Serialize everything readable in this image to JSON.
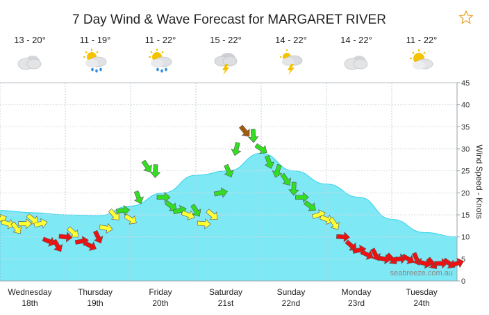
{
  "title": "7 Day Wind & Wave Forecast for MARGARET RIVER",
  "favourite_icon": "star-icon",
  "watermark": "seabreeze.com.au",
  "days": [
    {
      "temp": "13 - 20°",
      "icon": "cloud-icon",
      "day": "Wednesday",
      "date": "18th"
    },
    {
      "temp": "11 - 19°",
      "icon": "sun-cloud-rain-icon",
      "day": "Thursday",
      "date": "19th"
    },
    {
      "temp": "11 - 22°",
      "icon": "sun-cloud-rain-icon",
      "day": "Friday",
      "date": "20th"
    },
    {
      "temp": "15 - 22°",
      "icon": "storm-cloud-icon",
      "day": "Saturday",
      "date": "21st"
    },
    {
      "temp": "14 - 22°",
      "icon": "sun-storm-cloud-icon",
      "day": "Sunday",
      "date": "22nd"
    },
    {
      "temp": "14 - 22°",
      "icon": "cloud-icon",
      "day": "Monday",
      "date": "23rd"
    },
    {
      "temp": "11 - 22°",
      "icon": "sun-cloud-icon",
      "day": "Tuesday",
      "date": "24th"
    }
  ],
  "colors": {
    "wave": "#7fe8f5",
    "wave_edge": "#33d3ea",
    "light": "#ffff33",
    "moderate": "#33dd22",
    "strong": "#ee1111",
    "gale": "#a35c0a"
  },
  "chart_data": {
    "type": "area",
    "ylabel": "Wind Speed - Knots",
    "yaxis_position": "right",
    "ylim": [
      0,
      45
    ],
    "yticks": [
      0,
      5,
      10,
      15,
      20,
      25,
      30,
      35,
      40,
      45
    ],
    "xlim": [
      0,
      7
    ],
    "x_units": "days from Wednesday 18th 00:00",
    "grid": true,
    "wave_height_series": {
      "x": [
        0,
        0.5,
        1,
        1.5,
        2,
        2.5,
        3,
        3.5,
        4,
        4.5,
        5,
        5.5,
        6,
        6.5,
        7
      ],
      "values": [
        16,
        15.5,
        15,
        14.8,
        17,
        20,
        24,
        25,
        29,
        25,
        22,
        19,
        14,
        11,
        10
      ]
    },
    "wind_series": {
      "x": [
        0.0,
        0.12,
        0.25,
        0.38,
        0.5,
        0.62,
        0.75,
        0.88,
        1.0,
        1.12,
        1.25,
        1.38,
        1.5,
        1.62,
        1.75,
        1.88,
        2.0,
        2.12,
        2.25,
        2.38,
        2.5,
        2.62,
        2.75,
        2.88,
        3.0,
        3.12,
        3.25,
        3.38,
        3.5,
        3.62,
        3.75,
        3.88,
        4.0,
        4.12,
        4.25,
        4.38,
        4.5,
        4.62,
        4.75,
        4.88,
        5.0,
        5.12,
        5.25,
        5.38,
        5.5,
        5.62,
        5.75,
        5.88,
        6.0,
        6.12,
        6.25,
        6.38,
        6.5,
        6.62,
        6.75,
        6.88,
        7.0
      ],
      "speed": [
        14,
        13,
        12,
        13,
        14,
        13,
        9,
        8,
        10,
        11,
        9,
        8,
        10,
        12,
        15,
        16,
        14,
        19,
        26,
        25,
        19,
        17,
        16,
        15,
        16,
        13,
        15,
        20,
        25,
        30,
        34,
        33,
        30,
        27,
        25,
        23,
        21,
        19,
        17,
        15,
        14,
        13,
        10,
        8,
        7,
        6,
        6,
        5,
        5,
        5,
        5,
        5,
        4,
        4,
        4,
        4,
        4
      ],
      "bands": [
        {
          "range": "0-15 knots",
          "color": "#ffff33"
        },
        {
          "range": "15-30 knots",
          "color": "#33dd22"
        },
        {
          "range": "30-40 knots",
          "color": "#a35c0a"
        }
      ]
    }
  }
}
